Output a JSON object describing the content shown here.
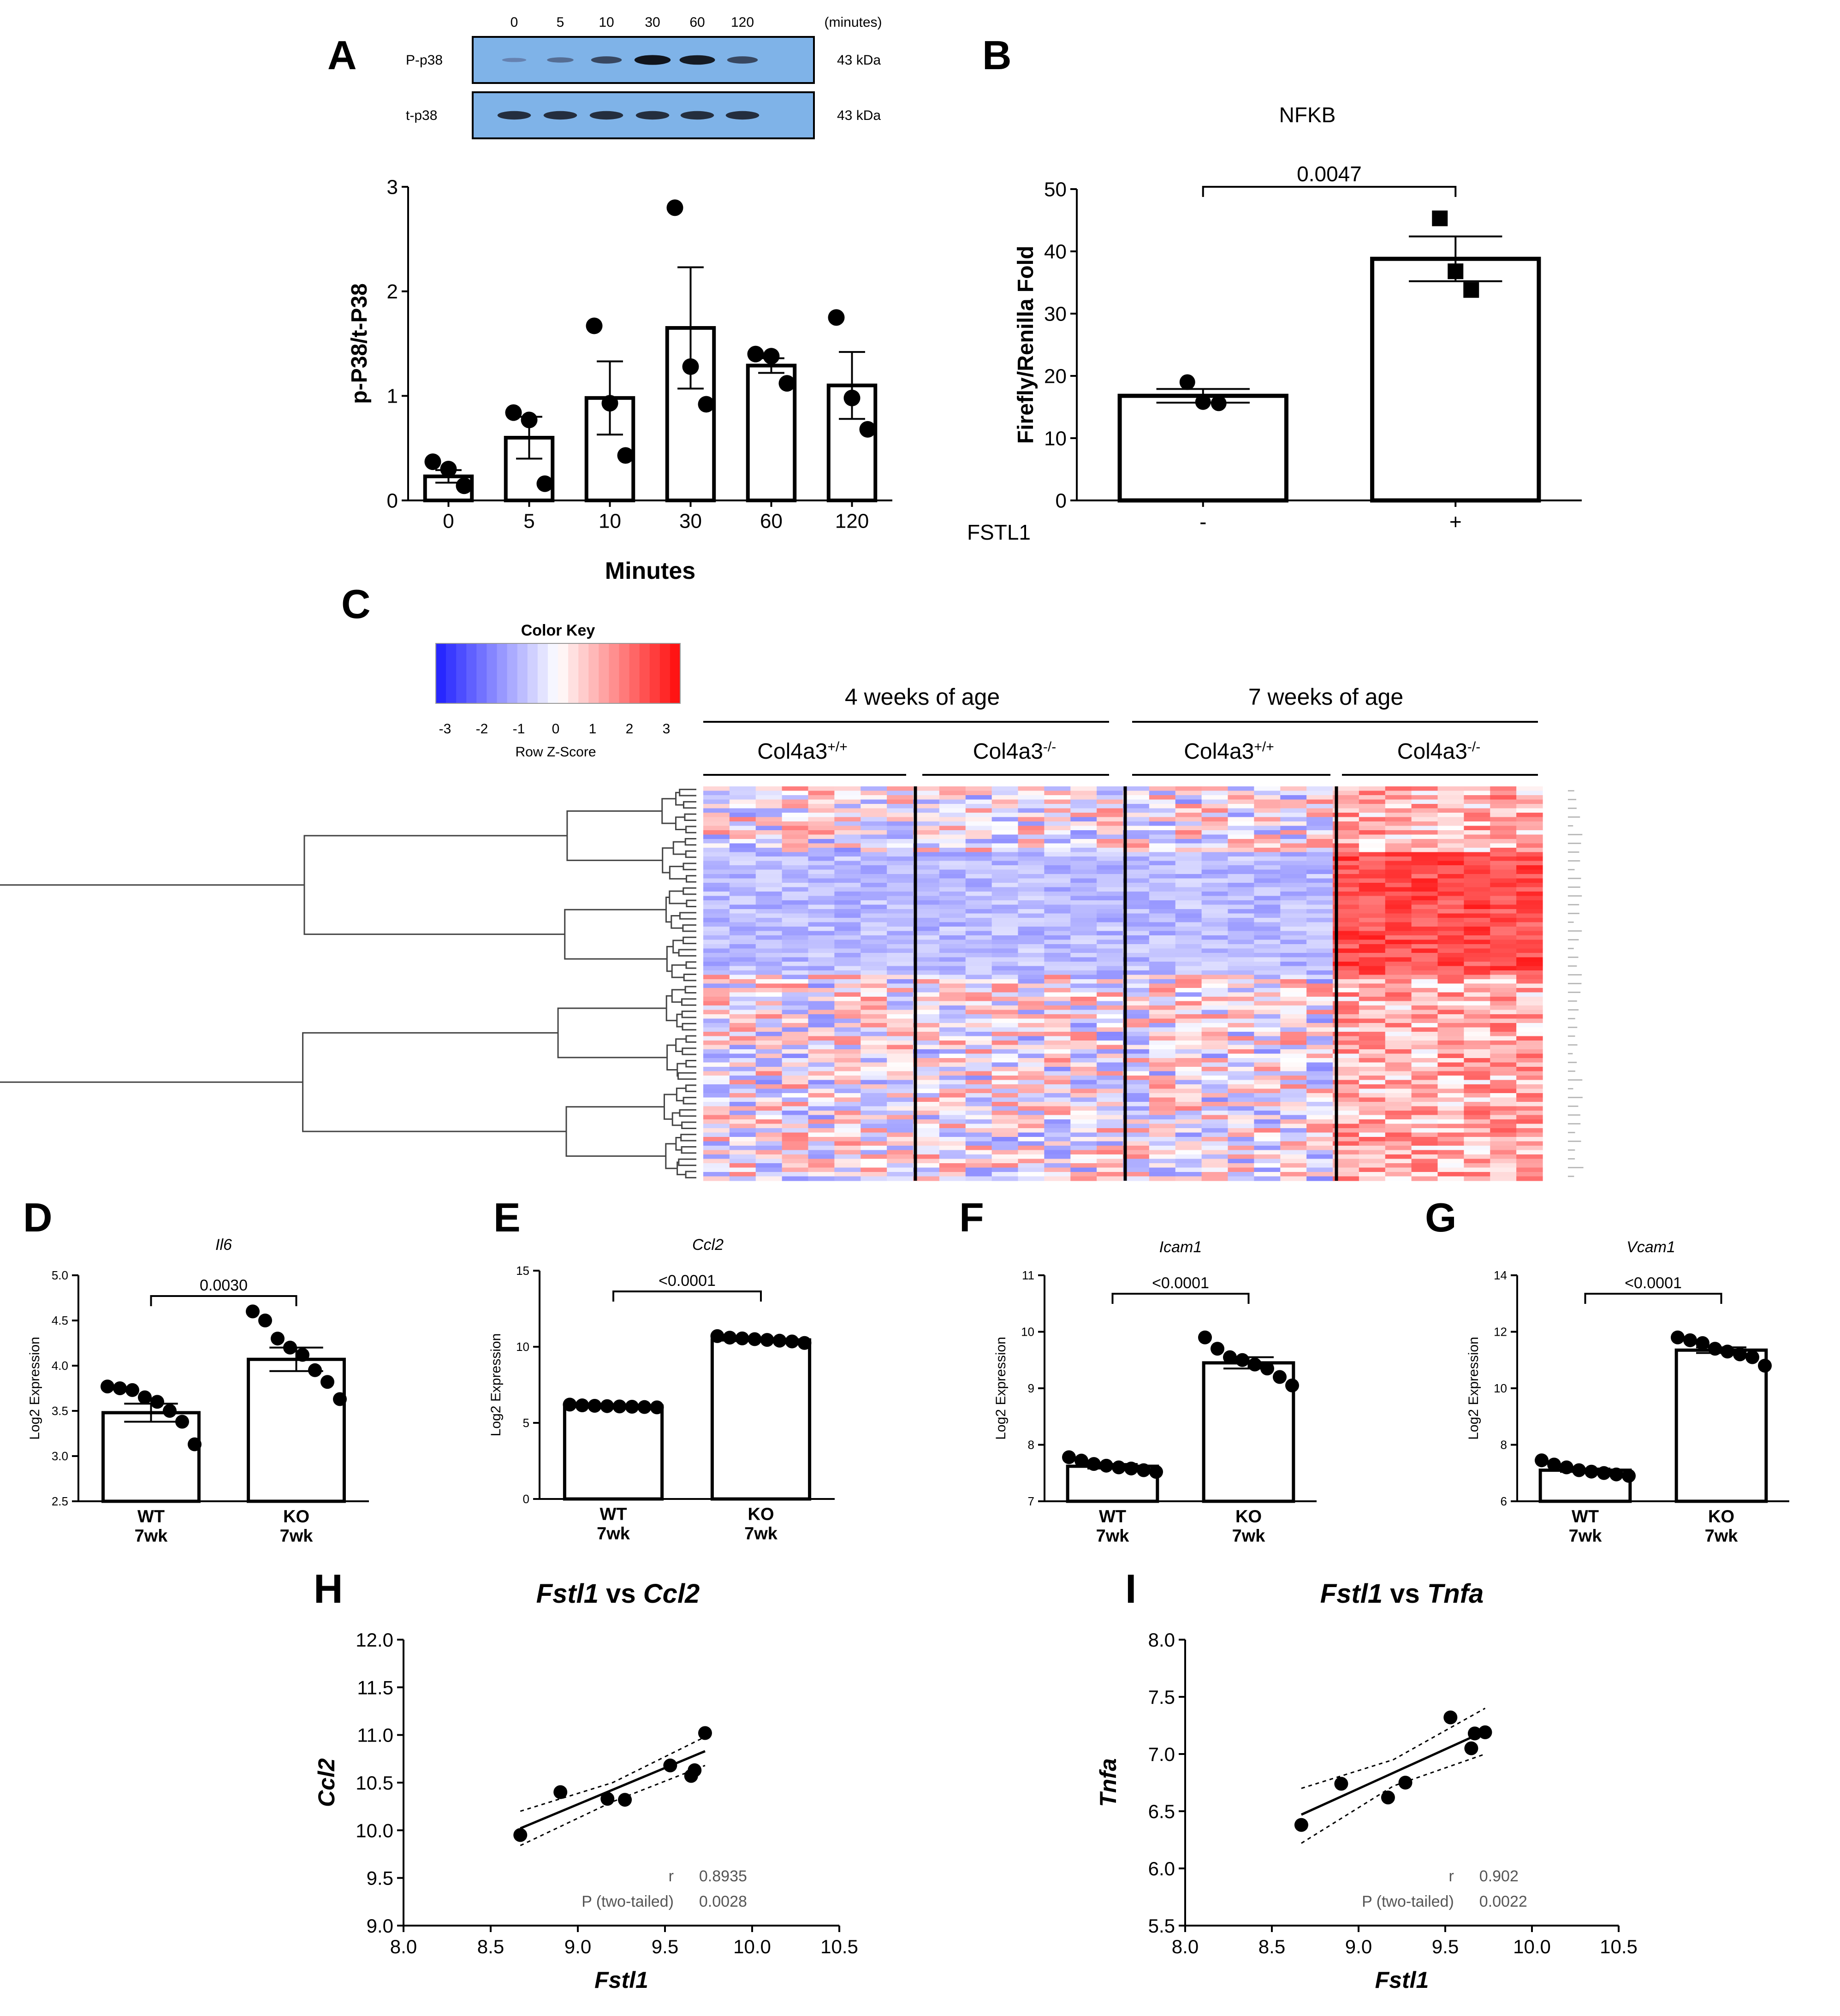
{
  "panels": {
    "A": {
      "letter": "A",
      "blot": {
        "time_header": [
          "0",
          "5",
          "10",
          "30",
          "60",
          "120"
        ],
        "unit": "(minutes)",
        "rows": [
          {
            "label": "P-p38",
            "size": "43 kDa",
            "intensities": [
              0.08,
              0.25,
              0.55,
              0.95,
              0.9,
              0.55
            ]
          },
          {
            "label": "t-p38",
            "size": "43 kDa",
            "intensities": [
              0.75,
              0.75,
              0.75,
              0.75,
              0.75,
              0.75
            ]
          }
        ]
      }
    },
    "B": {
      "letter": "B"
    },
    "C": {
      "letter": "C",
      "color_key": {
        "title": "Color Key",
        "ticks": [
          "-3",
          "-2",
          "-1",
          "0",
          "1",
          "2",
          "3"
        ],
        "xlabel": "Row Z-Score",
        "low_color": "#1a1aff",
        "mid_color": "#ffffff",
        "high_color": "#ff0000"
      },
      "age_groups": [
        "4 weeks of age",
        "7 weeks of age"
      ],
      "genotype_base": [
        "Col4a3",
        "Col4a3",
        "Col4a3",
        "Col4a3"
      ],
      "genotype_sup": [
        "+/+",
        "-/-",
        "+/+",
        "-/-"
      ]
    },
    "D": {
      "letter": "D"
    },
    "E": {
      "letter": "E"
    },
    "F": {
      "letter": "F"
    },
    "G": {
      "letter": "G"
    },
    "H": {
      "letter": "H",
      "title_gene1": "Fstl1",
      "title_vs": " vs ",
      "title_gene2": "Ccl2",
      "stats_r_label": "r",
      "stats_p_label": "P (two-tailed)"
    },
    "I": {
      "letter": "I",
      "title_gene1": "Fstl1",
      "title_vs": " vs ",
      "title_gene2": "Tnfa",
      "stats_r_label": "r",
      "stats_p_label": "P (two-tailed)"
    }
  },
  "chart_data": [
    {
      "id": "A",
      "type": "bar",
      "title": "",
      "xlabel": "Minutes",
      "ylabel": "p-P38/t-P38",
      "categories": [
        "0",
        "5",
        "10",
        "30",
        "60",
        "120"
      ],
      "values": [
        0.23,
        0.6,
        0.98,
        1.65,
        1.29,
        1.1
      ],
      "sem": [
        0.06,
        0.2,
        0.35,
        0.58,
        0.07,
        0.32
      ],
      "points": [
        [
          0.37,
          0.3,
          0.14
        ],
        [
          0.84,
          0.77,
          0.16
        ],
        [
          1.67,
          0.93,
          0.43
        ],
        [
          2.8,
          1.28,
          0.92
        ],
        [
          1.4,
          1.38,
          1.12
        ],
        [
          1.75,
          0.98,
          0.68
        ]
      ],
      "ylim": [
        0,
        3
      ],
      "yticks": [
        "0",
        "1",
        "2",
        "3"
      ]
    },
    {
      "id": "B",
      "type": "bar",
      "title": "NFKB",
      "xlabel": "FSTL1",
      "ylabel": "Firefly/Renilla Fold",
      "categories": [
        "-",
        "+"
      ],
      "values": [
        16.8,
        38.8
      ],
      "sem": [
        1.1,
        3.6
      ],
      "points": [
        [
          19.0,
          15.8,
          15.6
        ],
        [
          45.3,
          36.8,
          33.8
        ]
      ],
      "markers": [
        "circle",
        "square"
      ],
      "ylim": [
        0,
        50
      ],
      "yticks": [
        "0",
        "10",
        "20",
        "30",
        "40",
        "50"
      ],
      "pvalue": "0.0047"
    },
    {
      "id": "C",
      "type": "heatmap",
      "groups": [
        "4 weeks of age",
        "7 weeks of age"
      ],
      "conditions": [
        "Col4a3+/+",
        "Col4a3-/-",
        "Col4a3+/+",
        "Col4a3-/-"
      ],
      "zlim": [
        -3,
        3
      ]
    },
    {
      "id": "D",
      "type": "bar",
      "title": "Il6",
      "ylabel": "Log2  Expression",
      "categories": [
        "WT\n7wk",
        "KO\n7wk"
      ],
      "cat_line1": [
        "WT",
        "KO"
      ],
      "cat_line2": [
        "7wk",
        "7wk"
      ],
      "values": [
        3.48,
        4.07
      ],
      "sem": [
        0.1,
        0.13
      ],
      "points": [
        [
          3.77,
          3.75,
          3.73,
          3.65,
          3.6,
          3.5,
          3.38,
          3.13
        ],
        [
          4.6,
          4.5,
          4.3,
          4.2,
          4.12,
          3.95,
          3.82,
          3.63
        ]
      ],
      "ylim": [
        2.5,
        5.0
      ],
      "yticks": [
        "2.5",
        "3.0",
        "3.5",
        "4.0",
        "4.5",
        "5.0"
      ],
      "pvalue": "0.0030"
    },
    {
      "id": "E",
      "type": "bar",
      "title": "Ccl2",
      "ylabel": "Log2  Expression",
      "categories": [
        "WT\n7wk",
        "KO\n7wk"
      ],
      "cat_line1": [
        "WT",
        "KO"
      ],
      "cat_line2": [
        "7wk",
        "7wk"
      ],
      "values": [
        6.1,
        10.45
      ],
      "sem": [
        0.05,
        0.08
      ],
      "points": [
        [
          6.2,
          6.15,
          6.12,
          6.1,
          6.08,
          6.06,
          6.04,
          6.02
        ],
        [
          10.7,
          10.6,
          10.55,
          10.5,
          10.45,
          10.4,
          10.35,
          10.25
        ]
      ],
      "ylim": [
        0,
        15
      ],
      "yticks": [
        "0",
        "5",
        "10",
        "15"
      ],
      "pvalue": "<0.0001"
    },
    {
      "id": "F",
      "type": "bar",
      "title": "Icam1",
      "ylabel": "Log2  Expression",
      "categories": [
        "WT\n7wk",
        "KO\n7wk"
      ],
      "cat_line1": [
        "WT",
        "KO"
      ],
      "cat_line2": [
        "7wk",
        "7wk"
      ],
      "values": [
        7.62,
        9.45
      ],
      "sem": [
        0.04,
        0.1
      ],
      "points": [
        [
          7.78,
          7.72,
          7.66,
          7.63,
          7.6,
          7.58,
          7.55,
          7.52
        ],
        [
          9.9,
          9.7,
          9.55,
          9.5,
          9.42,
          9.35,
          9.2,
          9.05
        ]
      ],
      "ylim": [
        7,
        11
      ],
      "yticks": [
        "7",
        "8",
        "9",
        "10",
        "11"
      ],
      "pvalue": "<0.0001"
    },
    {
      "id": "G",
      "type": "bar",
      "title": "Vcam1",
      "ylabel": "Log2  Expression",
      "categories": [
        "WT\n7wk",
        "KO\n7wk"
      ],
      "cat_line1": [
        "WT",
        "KO"
      ],
      "cat_line2": [
        "7wk",
        "7wk"
      ],
      "values": [
        7.1,
        11.35
      ],
      "sem": [
        0.06,
        0.1
      ],
      "points": [
        [
          7.45,
          7.3,
          7.2,
          7.1,
          7.05,
          7.0,
          6.95,
          6.9
        ],
        [
          11.8,
          11.7,
          11.6,
          11.4,
          11.3,
          11.2,
          11.1,
          10.8
        ]
      ],
      "ylim": [
        6,
        14
      ],
      "yticks": [
        "6",
        "8",
        "10",
        "12",
        "14"
      ],
      "pvalue": "<0.0001"
    },
    {
      "id": "H",
      "type": "scatter",
      "xlabel": "Fstl1",
      "ylabel": "Ccl2",
      "x": [
        8.67,
        8.9,
        9.17,
        9.27,
        9.53,
        9.65,
        9.67,
        9.73
      ],
      "y": [
        9.95,
        10.4,
        10.33,
        10.32,
        10.68,
        10.57,
        10.63,
        11.02
      ],
      "fit": {
        "x": [
          8.67,
          9.73
        ],
        "y": [
          10.02,
          10.83
        ]
      },
      "ci_upper": {
        "x": [
          8.67,
          9.2,
          9.73
        ],
        "y": [
          10.2,
          10.5,
          10.98
        ]
      },
      "ci_lower": {
        "x": [
          8.67,
          9.2,
          9.73
        ],
        "y": [
          9.84,
          10.3,
          10.68
        ]
      },
      "xlim": [
        8.0,
        10.5
      ],
      "ylim": [
        9.0,
        12.0
      ],
      "xticks": [
        "8.0",
        "8.5",
        "9.0",
        "9.5",
        "10.0",
        "10.5"
      ],
      "yticks": [
        "9.0",
        "9.5",
        "10.0",
        "10.5",
        "11.0",
        "11.5",
        "12.0"
      ],
      "r": "0.8935",
      "p": "0.0028"
    },
    {
      "id": "I",
      "type": "scatter",
      "xlabel": "Fstl1",
      "ylabel": "Tnfa",
      "x": [
        8.67,
        8.9,
        9.17,
        9.27,
        9.53,
        9.65,
        9.67,
        9.73
      ],
      "y": [
        6.38,
        6.74,
        6.62,
        6.75,
        7.32,
        7.05,
        7.18,
        7.19
      ],
      "fit": {
        "x": [
          8.67,
          9.73
        ],
        "y": [
          6.47,
          7.2
        ]
      },
      "ci_upper": {
        "x": [
          8.67,
          9.2,
          9.73
        ],
        "y": [
          6.7,
          6.95,
          7.4
        ]
      },
      "ci_lower": {
        "x": [
          8.67,
          9.2,
          9.73
        ],
        "y": [
          6.22,
          6.72,
          7.0
        ]
      },
      "xlim": [
        8.0,
        10.5
      ],
      "ylim": [
        5.5,
        8.0
      ],
      "xticks": [
        "8.0",
        "8.5",
        "9.0",
        "9.5",
        "10.0",
        "10.5"
      ],
      "yticks": [
        "5.5",
        "6.0",
        "6.5",
        "7.0",
        "7.5",
        "8.0"
      ],
      "r": "0.902",
      "p": "0.0022"
    }
  ]
}
